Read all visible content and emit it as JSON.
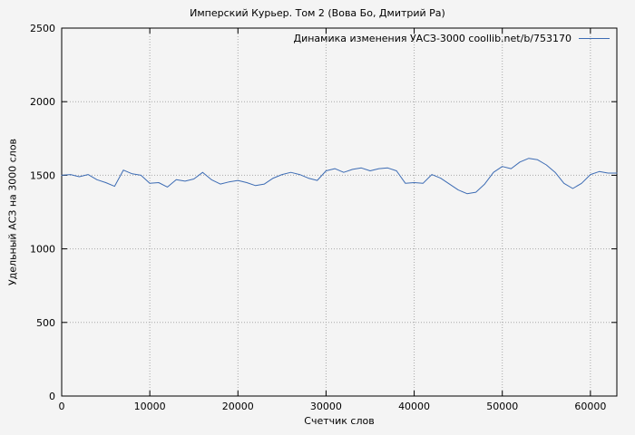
{
  "page": {
    "background_color": "#f4f4f4"
  },
  "chart_data": {
    "type": "line",
    "title": "Имперский Курьер. Том 2 (Вова Бо, Дмитрий Ра)",
    "xlabel": "Счетчик слов",
    "ylabel": "Удельный АСЗ на 3000 слов",
    "xlim": [
      0,
      63000
    ],
    "ylim": [
      0,
      2500
    ],
    "xticks": [
      0,
      10000,
      20000,
      30000,
      40000,
      50000,
      60000
    ],
    "yticks": [
      0,
      500,
      1000,
      1500,
      2000,
      2500
    ],
    "grid": true,
    "grid_style": "dotted",
    "legend_position": "top-right-inside",
    "line_color": "#3d6cb4",
    "series": [
      {
        "name": "Динамика изменения УАСЗ-3000 coollib.net/b/753170",
        "x": [
          0,
          1000,
          2000,
          3000,
          4000,
          5000,
          6000,
          7000,
          8000,
          9000,
          10000,
          11000,
          12000,
          13000,
          14000,
          15000,
          16000,
          17000,
          18000,
          19000,
          20000,
          21000,
          22000,
          23000,
          24000,
          25000,
          26000,
          27000,
          28000,
          29000,
          30000,
          31000,
          32000,
          33000,
          34000,
          35000,
          36000,
          37000,
          38000,
          39000,
          40000,
          41000,
          42000,
          43000,
          44000,
          45000,
          46000,
          47000,
          48000,
          49000,
          50000,
          51000,
          52000,
          53000,
          54000,
          55000,
          56000,
          57000,
          58000,
          59000,
          60000,
          61000,
          62000,
          63000
        ],
        "y": [
          1500,
          1505,
          1490,
          1505,
          1470,
          1450,
          1425,
          1535,
          1510,
          1500,
          1445,
          1450,
          1420,
          1470,
          1460,
          1475,
          1520,
          1470,
          1440,
          1455,
          1465,
          1450,
          1430,
          1440,
          1480,
          1505,
          1520,
          1505,
          1480,
          1465,
          1530,
          1545,
          1520,
          1540,
          1550,
          1530,
          1545,
          1550,
          1530,
          1445,
          1450,
          1445,
          1505,
          1480,
          1440,
          1400,
          1375,
          1385,
          1440,
          1520,
          1560,
          1545,
          1590,
          1615,
          1605,
          1570,
          1520,
          1445,
          1410,
          1445,
          1505,
          1525,
          1515,
          1515
        ]
      }
    ]
  }
}
